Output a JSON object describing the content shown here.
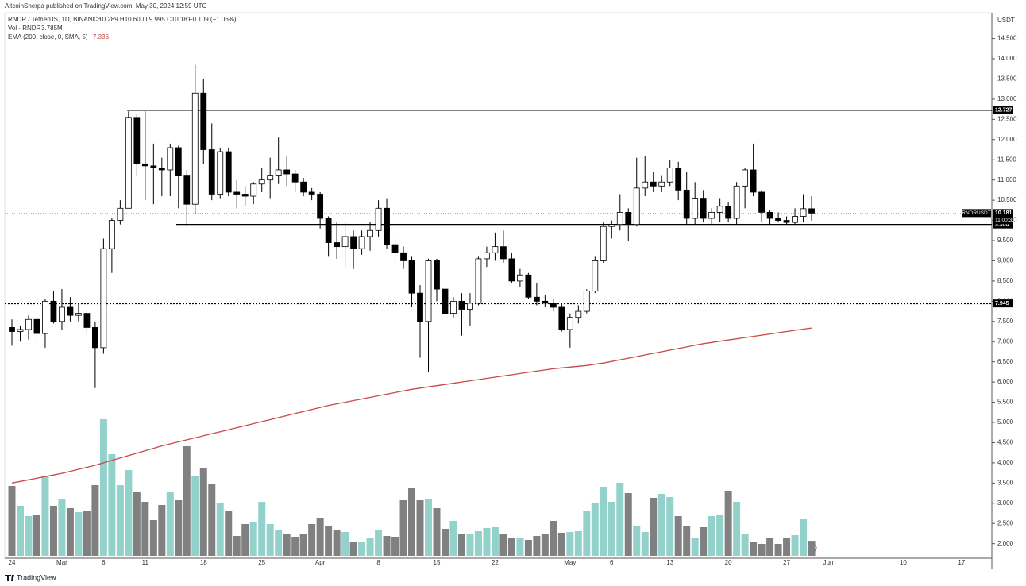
{
  "chart_data": {
    "type": "candlestick",
    "header": "AltcoinSherpa published on TradingView.com, May 30, 2024 12:59 UTC",
    "legend": {
      "symbol": "RNDR / TetherUS, 1D, BINANCE",
      "ohlc": "O10.289 H10.600 L9.995 C10.181",
      "change": "−0.109 (−1.06%)",
      "vol_label": "Vol · RNDR",
      "vol_value": "3.785M",
      "ema_label": "EMA (200, close, 0, SMA, 5)",
      "ema_value": "7.336"
    },
    "currency": "USDT",
    "symbol_tag": "RNDRUSDT",
    "last_price": {
      "value": 10.181,
      "label": "10.181"
    },
    "countdown": "11:00:33",
    "brand": "TradingView",
    "categories": [
      "24",
      null,
      null,
      null,
      null,
      null,
      "Mar",
      null,
      null,
      null,
      null,
      "6",
      null,
      null,
      null,
      null,
      "11",
      null,
      null,
      null,
      null,
      null,
      null,
      "18",
      null,
      null,
      null,
      null,
      null,
      null,
      "25",
      null,
      null,
      null,
      null,
      null,
      null,
      "Apr",
      null,
      null,
      null,
      null,
      null,
      null,
      "8",
      null,
      null,
      null,
      null,
      null,
      null,
      "15",
      null,
      null,
      null,
      null,
      null,
      null,
      "22",
      null,
      null,
      null,
      null,
      null,
      null,
      null,
      null,
      "May",
      null,
      null,
      null,
      null,
      "6",
      null,
      null,
      null,
      null,
      null,
      null,
      "13",
      null,
      null,
      null,
      null,
      null,
      null,
      "20",
      null,
      null,
      null,
      null,
      null,
      null,
      "27",
      null,
      null,
      null,
      null,
      "Jun",
      null,
      null,
      null,
      null,
      null,
      null,
      null,
      null,
      "10",
      null,
      null,
      null,
      null,
      null,
      null,
      "17",
      null,
      null,
      null
    ],
    "open": [
      7.35,
      7.25,
      7.3,
      7.55,
      7.2,
      8.0,
      7.5,
      7.85,
      7.65,
      7.7,
      7.35,
      6.85,
      9.3,
      10.0,
      10.3,
      12.55,
      11.4,
      11.35,
      11.3,
      11.25,
      11.8,
      11.1,
      10.4,
      13.15,
      11.75,
      10.65,
      11.7,
      10.7,
      10.65,
      10.6,
      10.9,
      11.0,
      11.1,
      11.25,
      11.15,
      10.95,
      10.7,
      10.65,
      10.05,
      9.45,
      9.35,
      9.6,
      9.3,
      9.6,
      9.75,
      10.3,
      9.4,
      9.2,
      9.0,
      8.2,
      7.5,
      9.0,
      8.3,
      7.7,
      8.0,
      7.8,
      7.95,
      9.05,
      9.2,
      9.35,
      9.05,
      8.5,
      8.65,
      8.1,
      8.0,
      7.95,
      7.85,
      7.3,
      7.6,
      7.75,
      8.25,
      9.0,
      9.85,
      9.9,
      10.2,
      9.9,
      10.8,
      10.95,
      10.85,
      10.95,
      11.3,
      10.75,
      10.05,
      10.55,
      10.05,
      10.2,
      10.35,
      10.05,
      10.85,
      11.25,
      10.7,
      10.2,
      10.05,
      10.0,
      9.95,
      10.1,
      10.289,
      null,
      null,
      null,
      null,
      null,
      null,
      null,
      null,
      null,
      null,
      null,
      null,
      null,
      null,
      null,
      null,
      null,
      null,
      null,
      null,
      null
    ],
    "high": [
      7.55,
      7.4,
      7.65,
      7.7,
      8.05,
      8.25,
      8.3,
      8.1,
      7.95,
      7.75,
      7.5,
      9.55,
      10.05,
      10.5,
      12.7,
      12.65,
      12.7,
      11.9,
      11.55,
      11.9,
      11.85,
      11.25,
      13.85,
      13.5,
      12.4,
      11.8,
      11.8,
      11.0,
      10.85,
      10.95,
      11.3,
      11.55,
      12.05,
      11.6,
      11.25,
      11.05,
      10.8,
      10.7,
      10.1,
      9.95,
      9.95,
      9.75,
      9.75,
      9.95,
      10.5,
      10.55,
      9.55,
      9.35,
      9.1,
      8.4,
      9.05,
      9.05,
      8.4,
      8.1,
      8.2,
      8.2,
      9.1,
      9.35,
      9.7,
      9.75,
      9.2,
      8.8,
      8.7,
      8.45,
      8.15,
      8.05,
      7.95,
      7.7,
      7.9,
      8.3,
      9.1,
      9.95,
      10.0,
      10.65,
      10.3,
      11.55,
      11.6,
      11.2,
      11.1,
      11.5,
      11.45,
      11.2,
      10.95,
      10.75,
      10.3,
      10.55,
      10.45,
      10.95,
      11.3,
      11.9,
      10.75,
      10.25,
      10.2,
      10.1,
      10.3,
      10.65,
      10.6,
      null,
      null,
      null,
      null,
      null,
      null,
      null,
      null,
      null,
      null,
      null,
      null,
      null,
      null,
      null,
      null,
      null,
      null,
      null,
      null,
      null
    ],
    "low": [
      6.9,
      7.0,
      7.05,
      7.05,
      6.85,
      7.45,
      7.3,
      7.5,
      7.5,
      7.2,
      5.85,
      6.7,
      8.7,
      9.9,
      10.3,
      11.1,
      10.5,
      10.4,
      10.6,
      10.6,
      10.3,
      9.85,
      10.15,
      11.4,
      10.5,
      10.55,
      10.6,
      10.3,
      10.35,
      10.4,
      10.7,
      10.55,
      10.9,
      10.85,
      10.7,
      10.6,
      10.5,
      9.8,
      9.1,
      9.05,
      8.85,
      8.8,
      9.15,
      9.25,
      9.6,
      9.3,
      8.95,
      8.8,
      7.85,
      6.6,
      6.25,
      8.0,
      7.6,
      7.6,
      7.15,
      7.4,
      7.9,
      8.85,
      9.0,
      8.95,
      8.45,
      8.35,
      8.05,
      7.9,
      7.85,
      7.75,
      7.25,
      6.85,
      7.45,
      7.7,
      8.2,
      8.95,
      9.55,
      9.75,
      9.5,
      9.85,
      10.6,
      10.7,
      10.7,
      10.85,
      10.5,
      9.9,
      9.9,
      9.95,
      9.9,
      9.95,
      9.95,
      9.9,
      10.3,
      10.6,
      9.95,
      9.9,
      9.95,
      9.9,
      9.9,
      9.95,
      9.995,
      null,
      null,
      null,
      null,
      null,
      null,
      null,
      null,
      null,
      null,
      null,
      null,
      null,
      null,
      null,
      null,
      null,
      null,
      null,
      null,
      null
    ],
    "close": [
      7.25,
      7.3,
      7.55,
      7.2,
      8.0,
      7.5,
      7.85,
      7.65,
      7.7,
      7.35,
      6.85,
      9.3,
      10.0,
      10.3,
      12.55,
      11.4,
      11.35,
      11.3,
      11.25,
      11.8,
      11.1,
      10.4,
      13.15,
      11.75,
      10.65,
      11.7,
      10.7,
      10.65,
      10.6,
      10.9,
      11.0,
      11.1,
      11.25,
      11.15,
      10.95,
      10.7,
      10.65,
      10.05,
      9.45,
      9.35,
      9.6,
      9.3,
      9.6,
      9.75,
      10.3,
      9.4,
      9.2,
      9.0,
      8.2,
      7.5,
      9.0,
      8.3,
      7.7,
      8.0,
      7.8,
      7.95,
      9.05,
      9.2,
      9.35,
      9.05,
      8.5,
      8.65,
      8.1,
      8.0,
      7.95,
      7.85,
      7.3,
      7.6,
      7.75,
      8.25,
      9.0,
      9.85,
      9.9,
      10.2,
      9.9,
      10.8,
      10.95,
      10.85,
      10.95,
      11.3,
      10.75,
      10.05,
      10.55,
      10.05,
      10.2,
      10.35,
      10.05,
      10.85,
      11.25,
      10.7,
      10.2,
      10.05,
      10.0,
      9.95,
      10.1,
      10.289,
      10.181,
      null,
      null,
      null,
      null,
      null,
      null,
      null,
      null,
      null,
      null,
      null,
      null,
      null,
      null,
      null,
      null,
      null,
      null,
      null,
      null,
      null
    ],
    "volume": [
      17.6,
      12.6,
      10,
      10.4,
      20,
      12.6,
      14.4,
      12,
      11,
      11.4,
      17.8,
      34.4,
      25.6,
      17.8,
      21.6,
      16,
      13.6,
      9,
      12.8,
      16,
      14,
      27.6,
      20,
      22,
      18,
      13.4,
      11.4,
      5,
      8,
      8.4,
      13.6,
      8,
      6.4,
      5.6,
      4.8,
      5.6,
      8,
      9.6,
      7.6,
      6.4,
      6,
      3.4,
      3.4,
      4.4,
      6.4,
      5,
      4.8,
      14,
      17,
      14,
      14.4,
      12,
      6.8,
      8.8,
      5.4,
      5.4,
      6.2,
      7,
      7.2,
      5.6,
      4.6,
      4.4,
      4,
      5,
      5.6,
      8.8,
      5.8,
      6,
      6.2,
      11.2,
      13.4,
      17.4,
      13.6,
      18.4,
      15.8,
      7.6,
      6,
      14.6,
      15.6,
      14.8,
      10,
      7.6,
      4.4,
      7.2,
      10,
      10.2,
      16.4,
      13.6,
      5.4,
      3.4,
      3,
      4.4,
      3,
      4.4,
      5.2,
      9.2,
      3.785,
      null,
      null,
      null,
      null,
      null,
      null,
      null,
      null,
      null,
      null,
      null,
      null,
      null,
      null,
      null,
      null,
      null,
      null,
      null,
      null,
      null
    ],
    "ema": [
      3.5,
      3.54,
      3.58,
      3.62,
      3.66,
      3.7,
      3.74,
      3.79,
      3.84,
      3.89,
      3.94,
      4.0,
      4.06,
      4.12,
      4.18,
      4.24,
      4.3,
      4.36,
      4.42,
      4.47,
      4.52,
      4.57,
      4.62,
      4.67,
      4.72,
      4.77,
      4.82,
      4.87,
      4.92,
      4.97,
      5.02,
      5.07,
      5.12,
      5.17,
      5.22,
      5.27,
      5.32,
      5.37,
      5.42,
      5.46,
      5.5,
      5.54,
      5.58,
      5.62,
      5.66,
      5.7,
      5.74,
      5.78,
      5.82,
      5.85,
      5.88,
      5.91,
      5.94,
      5.97,
      6.0,
      6.03,
      6.06,
      6.09,
      6.12,
      6.15,
      6.18,
      6.21,
      6.24,
      6.27,
      6.3,
      6.33,
      6.35,
      6.37,
      6.39,
      6.41,
      6.44,
      6.47,
      6.51,
      6.55,
      6.59,
      6.63,
      6.67,
      6.71,
      6.75,
      6.79,
      6.83,
      6.87,
      6.91,
      6.95,
      6.98,
      7.01,
      7.04,
      7.07,
      7.1,
      7.13,
      7.16,
      7.19,
      7.22,
      7.25,
      7.28,
      7.31,
      7.336,
      null,
      null,
      null,
      null,
      null,
      null,
      null,
      null,
      null,
      null,
      null,
      null,
      null,
      null,
      null,
      null,
      null,
      null,
      null,
      null,
      null
    ],
    "ylim": [
      1.64,
      15.14
    ],
    "yticks": [
      {
        "value": 2,
        "label": "2.000"
      },
      {
        "value": 2.5,
        "label": "2.500"
      },
      {
        "value": 3,
        "label": "3.000"
      },
      {
        "value": 3.5,
        "label": "3.500"
      },
      {
        "value": 4,
        "label": "4.000"
      },
      {
        "value": 4.5,
        "label": "4.500"
      },
      {
        "value": 5,
        "label": "5.000"
      },
      {
        "value": 5.5,
        "label": "5.500"
      },
      {
        "value": 6,
        "label": "6.000"
      },
      {
        "value": 6.5,
        "label": "6.500"
      },
      {
        "value": 7,
        "label": "7.000"
      },
      {
        "value": 7.5,
        "label": "7.500"
      },
      {
        "value": 8,
        "label": "8.000"
      },
      {
        "value": 8.5,
        "label": "8.500"
      },
      {
        "value": 9,
        "label": "9.000"
      },
      {
        "value": 9.5,
        "label": "9.500"
      },
      {
        "value": 10,
        "label": "10.000"
      },
      {
        "value": 10.5,
        "label": "10.500"
      },
      {
        "value": 11,
        "label": "11.000"
      },
      {
        "value": 11.5,
        "label": "11.500"
      },
      {
        "value": 12,
        "label": "12.000"
      },
      {
        "value": 12.5,
        "label": "12.500"
      },
      {
        "value": 13,
        "label": "13.000"
      },
      {
        "value": 13.5,
        "label": "13.500"
      },
      {
        "value": 14,
        "label": "14.000"
      },
      {
        "value": 14.5,
        "label": "14.500"
      }
    ],
    "levels": [
      {
        "value": 12.727,
        "label": "12.727",
        "style": "solid"
      },
      {
        "value": 9.9,
        "label": "9.900",
        "style": "solid"
      },
      {
        "value": 7.945,
        "label": "7.945",
        "style": "dotted"
      }
    ],
    "grid": false,
    "up_color": "#ffffff",
    "down_color": "#000000",
    "vol_up_color": "#92d2cb",
    "vol_down_color": "#808080",
    "ema_color": "#c8484b"
  }
}
